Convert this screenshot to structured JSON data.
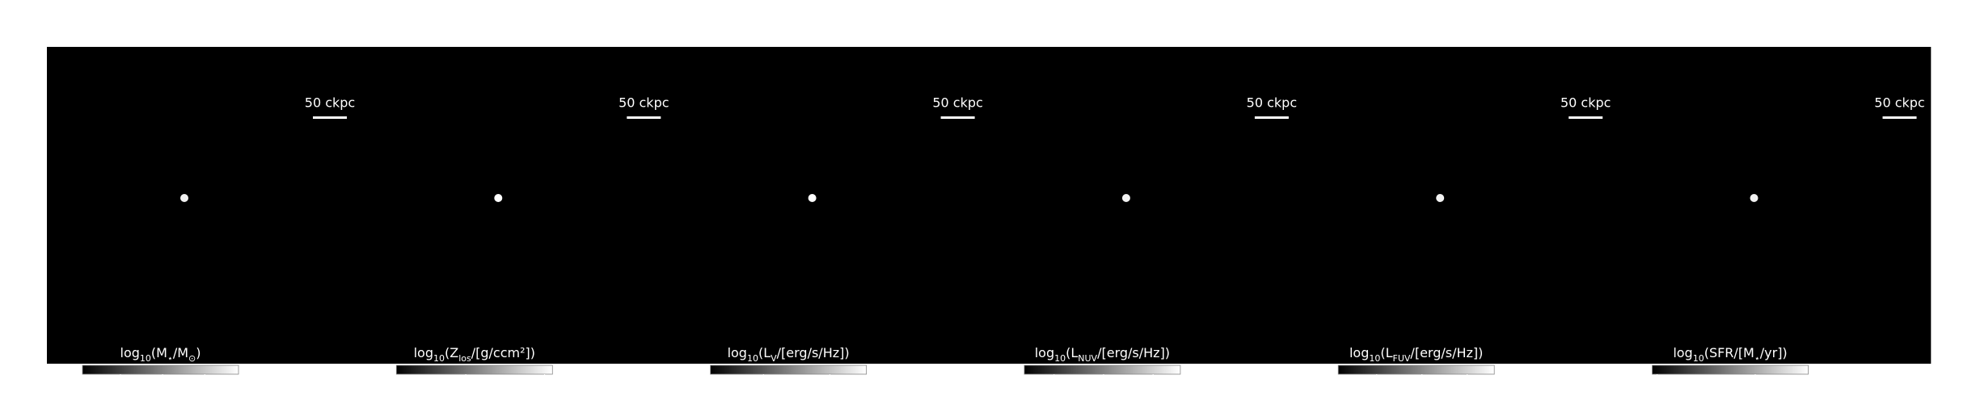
{
  "chart_data": [
    {
      "type": "image",
      "cmap": "gray",
      "scalebar": "50 ckpc",
      "colorbar": {
        "label": [
          "log",
          "10",
          "(M",
          "⋆",
          "/M",
          "⊙",
          ")"
        ],
        "clim": [
          6.1,
          9.8
        ],
        "ticks": [
          7,
          8,
          9
        ]
      }
    },
    {
      "type": "image",
      "cmap": "gray",
      "scalebar": "50 ckpc",
      "colorbar": {
        "label": [
          "log",
          "10",
          "(Z",
          "los",
          "/[g/ccm²])"
        ],
        "clim": [
          -9.4,
          0.5
        ],
        "ticks": [
          -5,
          0
        ]
      }
    },
    {
      "type": "image",
      "cmap": "gray",
      "scalebar": "50 ckpc",
      "colorbar": {
        "label": [
          "log",
          "10",
          "(L",
          "V",
          "/[erg/s/Hz])"
        ],
        "clim": [
          25.2,
          27.55
        ],
        "ticks": [
          26,
          27
        ]
      }
    },
    {
      "type": "image",
      "cmap": "gray",
      "scalebar": "50 ckpc",
      "colorbar": {
        "label": [
          "log",
          "10",
          "(L",
          "NUV",
          "/[erg/s/Hz])"
        ],
        "clim": [
          24.4,
          27.55
        ],
        "ticks": [
          25,
          26,
          27
        ]
      }
    },
    {
      "type": "image",
      "cmap": "gray",
      "scalebar": "50 ckpc",
      "colorbar": {
        "label": [
          "log",
          "10",
          "(L",
          "FUV",
          "/[erg/s/Hz])"
        ],
        "clim": [
          24.15,
          27.6
        ],
        "ticks": [
          25,
          26,
          27
        ]
      }
    },
    {
      "type": "image",
      "cmap": "gray",
      "scalebar": "50 ckpc",
      "colorbar": {
        "label": [
          "log",
          "10",
          "(SFR/[M",
          "⋆",
          "/yr])"
        ],
        "clim": [
          1.9,
          5.08
        ],
        "ticks": [
          2,
          4
        ]
      }
    }
  ]
}
